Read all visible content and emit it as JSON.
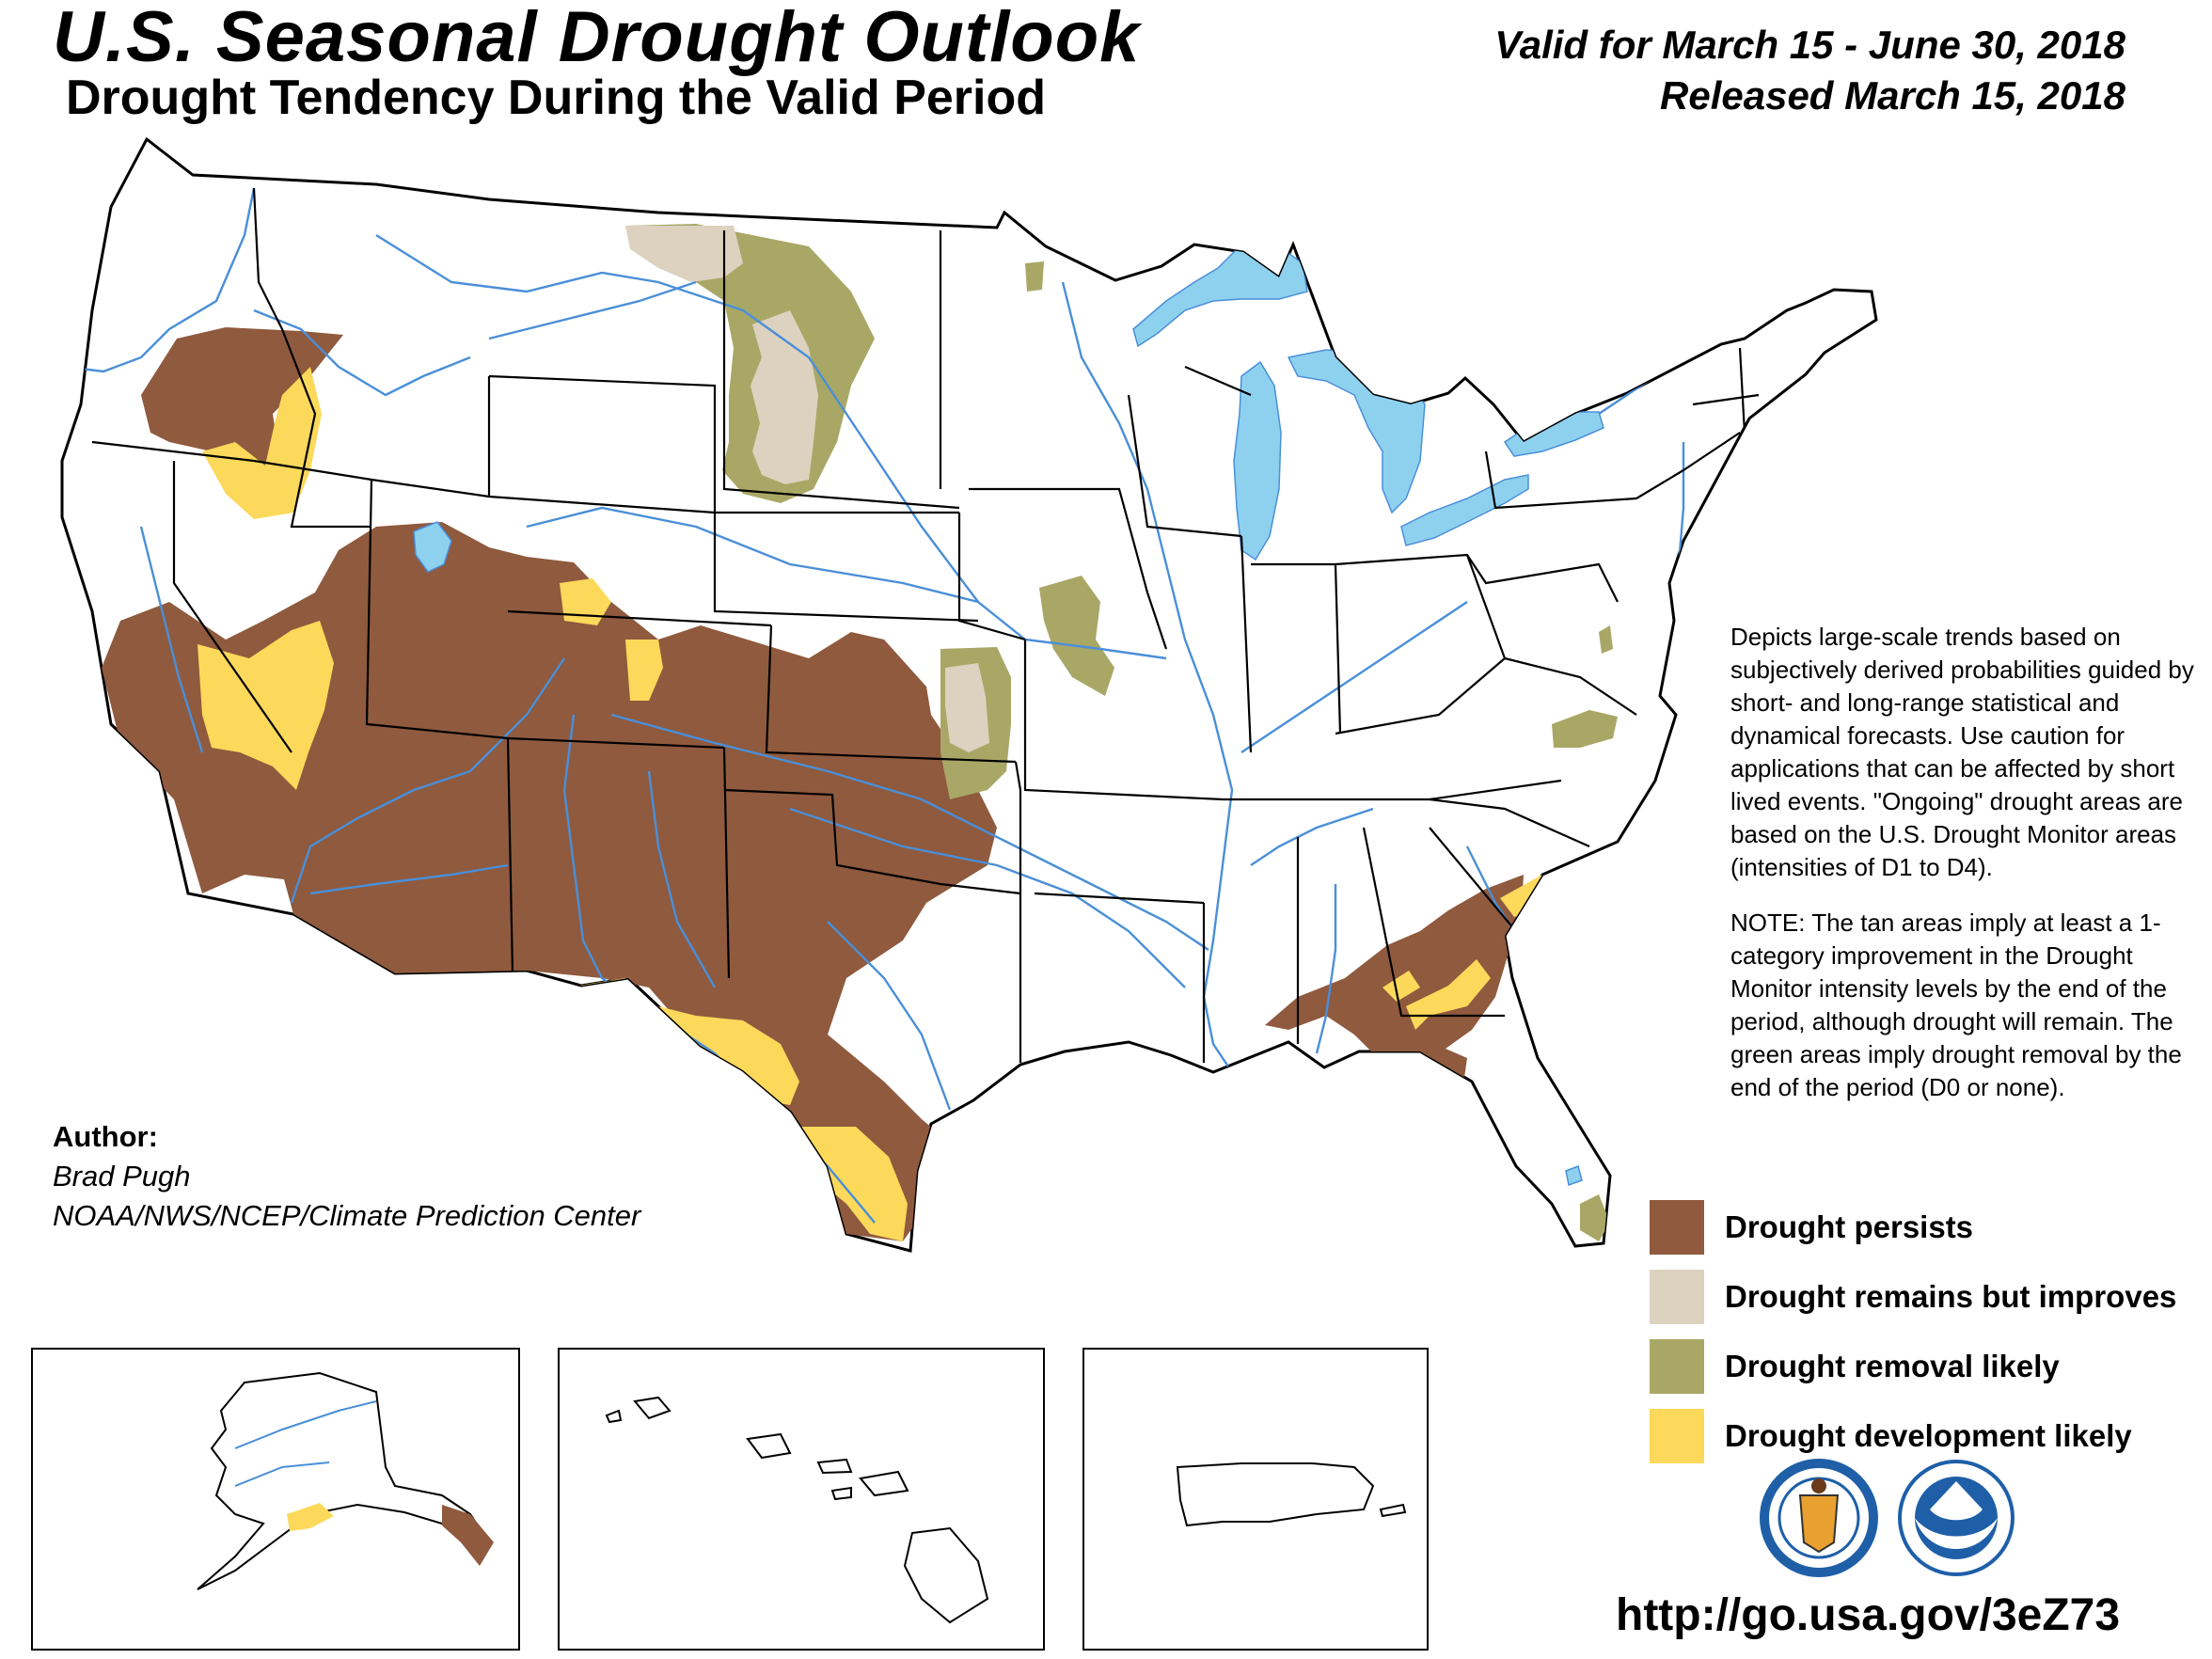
{
  "header": {
    "title": "U.S. Seasonal Drought Outlook",
    "subtitle": "Drought Tendency During the Valid Period",
    "valid": "Valid for March 15 - June 30, 2018",
    "released": "Released March 15, 2018"
  },
  "description": {
    "main": "Depicts large-scale trends based on subjectively derived probabilities guided by short- and long-range statistical and dynamical forecasts. Use caution for applications that can be affected by short lived events. \"Ongoing\" drought areas are based on the U.S. Drought Monitor areas (intensities of D1 to D4).",
    "note": "NOTE: The tan areas imply at least a 1-category improvement in the Drought Monitor intensity levels by the end of the period, although drought will remain. The green areas imply drought removal by the end of the period (D0 or none)."
  },
  "author": {
    "label": "Author:",
    "name": "Brad Pugh",
    "org": "NOAA/NWS/NCEP/Climate Prediction Center"
  },
  "legend": [
    {
      "label": "Drought persists",
      "color": "#8f5a3e"
    },
    {
      "label": "Drought remains but improves",
      "color": "#ddd2c0"
    },
    {
      "label": "Drought removal likely",
      "color": "#a9a766"
    },
    {
      "label": "Drought development likely",
      "color": "#fcd95a"
    }
  ],
  "colors": {
    "persists": "#8f5a3e",
    "improves": "#ddd2c0",
    "removal": "#a9a766",
    "development": "#fcd95a",
    "water": "#8ed1ef",
    "rivers": "#4a8fd8"
  },
  "insets": [
    "Alaska",
    "Hawaii",
    "Puerto Rico"
  ],
  "url": "http://go.usa.gov/3eZ73",
  "seals": [
    "doc-seal-icon",
    "noaa-logo-icon"
  ]
}
